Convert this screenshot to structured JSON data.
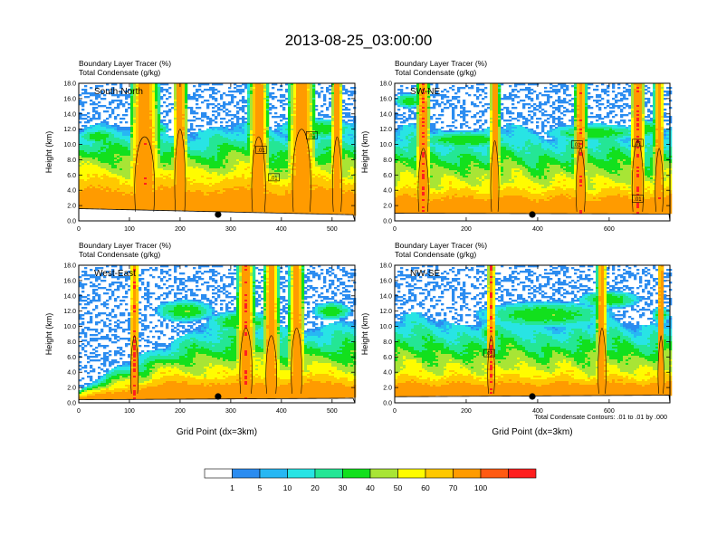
{
  "title": "2013-08-25_03:00:00",
  "colors": {
    "palette": [
      "#ffffff",
      "#2b8cf0",
      "#27b7f3",
      "#28e4e4",
      "#24e695",
      "#12e01d",
      "#a8e535",
      "#fffc00",
      "#ffc800",
      "#ff9b00",
      "#ff5a12",
      "#ff1f1f"
    ],
    "contour": "#000000",
    "text": "#000000"
  },
  "colorbar": {
    "levels": [
      "1",
      "5",
      "10",
      "20",
      "30",
      "40",
      "50",
      "60",
      "70",
      "100"
    ]
  },
  "footnote": "Total Condensate Contours: .01 to .01 by .000",
  "chart_data": [
    {
      "type": "heatmap",
      "title": "South-North",
      "label_line1": "Boundary Layer Tracer    (%)",
      "label_line2": "Total Condensate    (g/kg)",
      "xlabel": "",
      "ylabel": "Height (km)",
      "xlim": [
        0,
        545
      ],
      "ylim": [
        0,
        18
      ],
      "xticks": [
        "0",
        "100",
        "200",
        "300",
        "400",
        "500"
      ],
      "yticks": [
        "0.0",
        "2.0",
        "4.0",
        "6.0",
        "8.0",
        "10.0",
        "12.0",
        "14.0",
        "16.0",
        "18.0"
      ],
      "marker_x": 275,
      "contour_labels": [
        {
          "text": ".01",
          "x": 460,
          "y": 11.2
        },
        {
          "text": ".01",
          "x": 360,
          "y": 9.3
        },
        {
          "text": ".01",
          "x": 385,
          "y": 5.7
        }
      ]
    },
    {
      "type": "heatmap",
      "title": "SW-NE",
      "label_line1": "Boundary Layer Tracer    (%)",
      "label_line2": "Total Condensate    (g/kg)",
      "xlabel": "",
      "ylabel": "Height (km)",
      "xlim": [
        0,
        770
      ],
      "ylim": [
        0,
        18
      ],
      "xticks": [
        "0",
        "200",
        "400",
        "600"
      ],
      "yticks": [
        "0.0",
        "2.0",
        "4.0",
        "6.0",
        "8.0",
        "10.0",
        "12.0",
        "14.0",
        "16.0",
        "18.0"
      ],
      "marker_x": 385,
      "contour_labels": [
        {
          "text": ".01",
          "x": 510,
          "y": 10.0
        },
        {
          "text": ".01",
          "x": 680,
          "y": 10.2
        },
        {
          "text": ".01",
          "x": 680,
          "y": 2.9
        }
      ]
    },
    {
      "type": "heatmap",
      "title": "West-East",
      "label_line1": "Boundary Layer Tracer    (%)",
      "label_line2": "Total Condensate    (g/kg)",
      "xlabel": "Grid Point (dx=3km)",
      "ylabel": "Height (km)",
      "xlim": [
        0,
        545
      ],
      "ylim": [
        0,
        18
      ],
      "xticks": [
        "0",
        "100",
        "200",
        "300",
        "400",
        "500"
      ],
      "yticks": [
        "0.0",
        "2.0",
        "4.0",
        "6.0",
        "8.0",
        "10.0",
        "12.0",
        "14.0",
        "16.0",
        "18.0"
      ],
      "marker_x": 275,
      "contour_labels": []
    },
    {
      "type": "heatmap",
      "title": "NW-SE",
      "label_line1": "Boundary Layer Tracer    (%)",
      "label_line2": "Total Condensate    (g/kg)",
      "xlabel": "Grid Point (dx=3km)",
      "ylabel": "Height (km)",
      "xlim": [
        0,
        770
      ],
      "ylim": [
        0,
        18
      ],
      "xticks": [
        "0",
        "200",
        "400",
        "600"
      ],
      "yticks": [
        "0.0",
        "2.0",
        "4.0",
        "6.0",
        "8.0",
        "10.0",
        "12.0",
        "14.0",
        "16.0",
        "18.0"
      ],
      "marker_x": 385,
      "contour_labels": [
        {
          "text": ".01",
          "x": 265,
          "y": 6.5
        }
      ]
    }
  ]
}
